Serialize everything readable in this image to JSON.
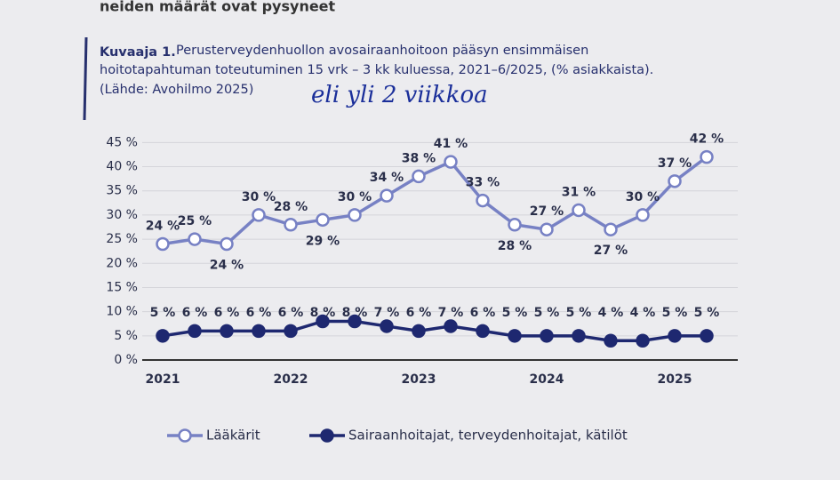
{
  "header_text": "neiden määrät ovat pysyneet",
  "chart_data": {
    "type": "line",
    "title_label": "Kuvaaja 1.",
    "title_lines": [
      "Perusterveydenhuollon avosairaanhoitoon pääsyn ensimmäisen",
      "hoitotapahtuman toteutuminen 15 vrk – 3 kk kuluessa, 2021–6/2025, (% asiakkaista)."
    ],
    "source": "(Lähde: Avohilmo 2025)",
    "annotation": "eli yli 2 viikkoa",
    "categories": [
      "2021",
      null,
      null,
      null,
      "2022",
      null,
      null,
      null,
      "2023",
      null,
      null,
      null,
      "2024",
      null,
      null,
      null,
      "2025",
      null
    ],
    "series": [
      {
        "name": "Lääkärit",
        "color": "#7781c4",
        "values": [
          24,
          25,
          24,
          30,
          28,
          29,
          30,
          34,
          38,
          41,
          33,
          28,
          27,
          31,
          27,
          30,
          37,
          42
        ],
        "value_labels": [
          "24 %",
          "25 %",
          "24 %",
          "30 %",
          "28 %",
          "29 %",
          "30 %",
          "34 %",
          "38 %",
          "41 %",
          "33 %",
          "28 %",
          "27 %",
          "31 %",
          "27 %",
          "30 %",
          "37 %",
          "42 %"
        ]
      },
      {
        "name": "Sairaanhoitajat, terveydenhoitajat, kätilöt",
        "color": "#1e2870",
        "values": [
          5,
          6,
          6,
          6,
          6,
          8,
          8,
          7,
          6,
          7,
          6,
          5,
          5,
          5,
          4,
          4,
          5,
          5
        ],
        "value_labels": [
          "5 %",
          "6 %",
          "6 %",
          "6 %",
          "6 %",
          "8 %",
          "8 %",
          "7 %",
          "6 %",
          "7 %",
          "6 %",
          "5 %",
          "5 %",
          "5 %",
          "4 %",
          "4 %",
          "5 %",
          "5 %"
        ]
      }
    ],
    "ylim": [
      0,
      48
    ],
    "yticks": [
      {
        "value": 0,
        "label": "0 %"
      },
      {
        "value": 5,
        "label": "5 %"
      },
      {
        "value": 10,
        "label": "10 %"
      },
      {
        "value": 15,
        "label": "15 %"
      },
      {
        "value": 20,
        "label": "20 %"
      },
      {
        "value": 25,
        "label": "25 %"
      },
      {
        "value": 30,
        "label": "30 %"
      },
      {
        "value": 35,
        "label": "35 %"
      },
      {
        "value": 40,
        "label": "40 %"
      },
      {
        "value": 45,
        "label": "45 %"
      }
    ],
    "grid": true
  }
}
